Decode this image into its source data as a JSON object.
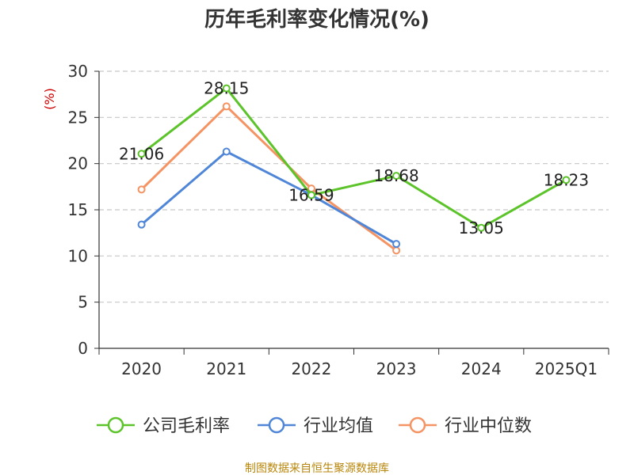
{
  "chart_data": {
    "type": "line",
    "title": "历年毛利率变化情况(%)",
    "ylabel": "(%)",
    "xlabel": "",
    "categories": [
      "2020",
      "2021",
      "2022",
      "2023",
      "2024",
      "2025Q1"
    ],
    "ylim": [
      0,
      30
    ],
    "yticks": [
      0,
      5,
      10,
      15,
      20,
      25,
      30
    ],
    "grid": true,
    "legend_position": "bottom",
    "series": [
      {
        "name": "公司毛利率",
        "color": "#5cc42a",
        "values": [
          21.06,
          28.15,
          16.59,
          18.68,
          13.05,
          18.23
        ],
        "labels": [
          "21.06",
          "28.15",
          "16.59",
          "18.68",
          "13.05",
          "18.23"
        ]
      },
      {
        "name": "行业均值",
        "color": "#4f86d8",
        "values": [
          13.4,
          21.3,
          16.6,
          11.3,
          null,
          null
        ]
      },
      {
        "name": "行业中位数",
        "color": "#f59363",
        "values": [
          17.2,
          26.2,
          17.3,
          10.6,
          null,
          null
        ]
      }
    ]
  },
  "source": "制图数据来自恒生聚源数据库"
}
